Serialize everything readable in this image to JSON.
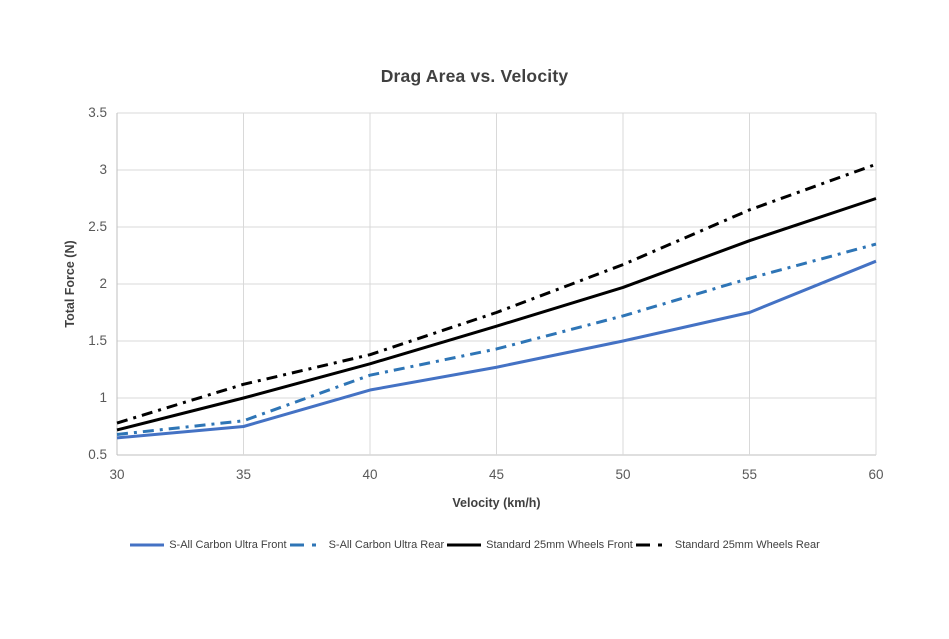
{
  "page": {
    "background": "#ffffff"
  },
  "chart_data": {
    "type": "line",
    "title": "Drag Area vs. Velocity",
    "xlabel": "Velocity (km/h)",
    "ylabel": "Total Force (N)",
    "x": [
      30,
      35,
      40,
      45,
      50,
      55,
      60
    ],
    "x_tick_labels": [
      "30",
      "35",
      "40",
      "45",
      "50",
      "55",
      "60"
    ],
    "y_ticks": [
      0.5,
      1,
      1.5,
      2,
      2.5,
      3,
      3.5
    ],
    "y_tick_labels": [
      "0.5",
      "1",
      "1.5",
      "2",
      "2.5",
      "3",
      "3.5"
    ],
    "xlim": [
      30,
      60
    ],
    "ylim": [
      0.5,
      3.5
    ],
    "grid": true,
    "legend_position": "bottom-center",
    "series": [
      {
        "name": "S-All Carbon Ultra Front",
        "color": "#4472C4",
        "style": "solid",
        "values": [
          0.65,
          0.75,
          1.07,
          1.27,
          1.5,
          1.75,
          2.2
        ]
      },
      {
        "name": "S-All Carbon Ultra Rear",
        "color": "#2E75B6",
        "style": "dashdot",
        "values": [
          0.68,
          0.8,
          1.2,
          1.43,
          1.72,
          2.05,
          2.35
        ]
      },
      {
        "name": "Standard 25mm Wheels Front",
        "color": "#000000",
        "style": "solid",
        "values": [
          0.72,
          1.0,
          1.3,
          1.63,
          1.97,
          2.38,
          2.75
        ]
      },
      {
        "name": "Standard 25mm Wheels Rear",
        "color": "#000000",
        "style": "dashdot",
        "values": [
          0.78,
          1.12,
          1.38,
          1.75,
          2.17,
          2.65,
          3.05
        ]
      }
    ],
    "colors": {
      "title": "#404040",
      "axis_title": "#404040",
      "tick_label": "#595959",
      "gridline": "#D9D9D9",
      "axis_line": "#BFBFBF",
      "background": "#FFFFFF"
    }
  }
}
